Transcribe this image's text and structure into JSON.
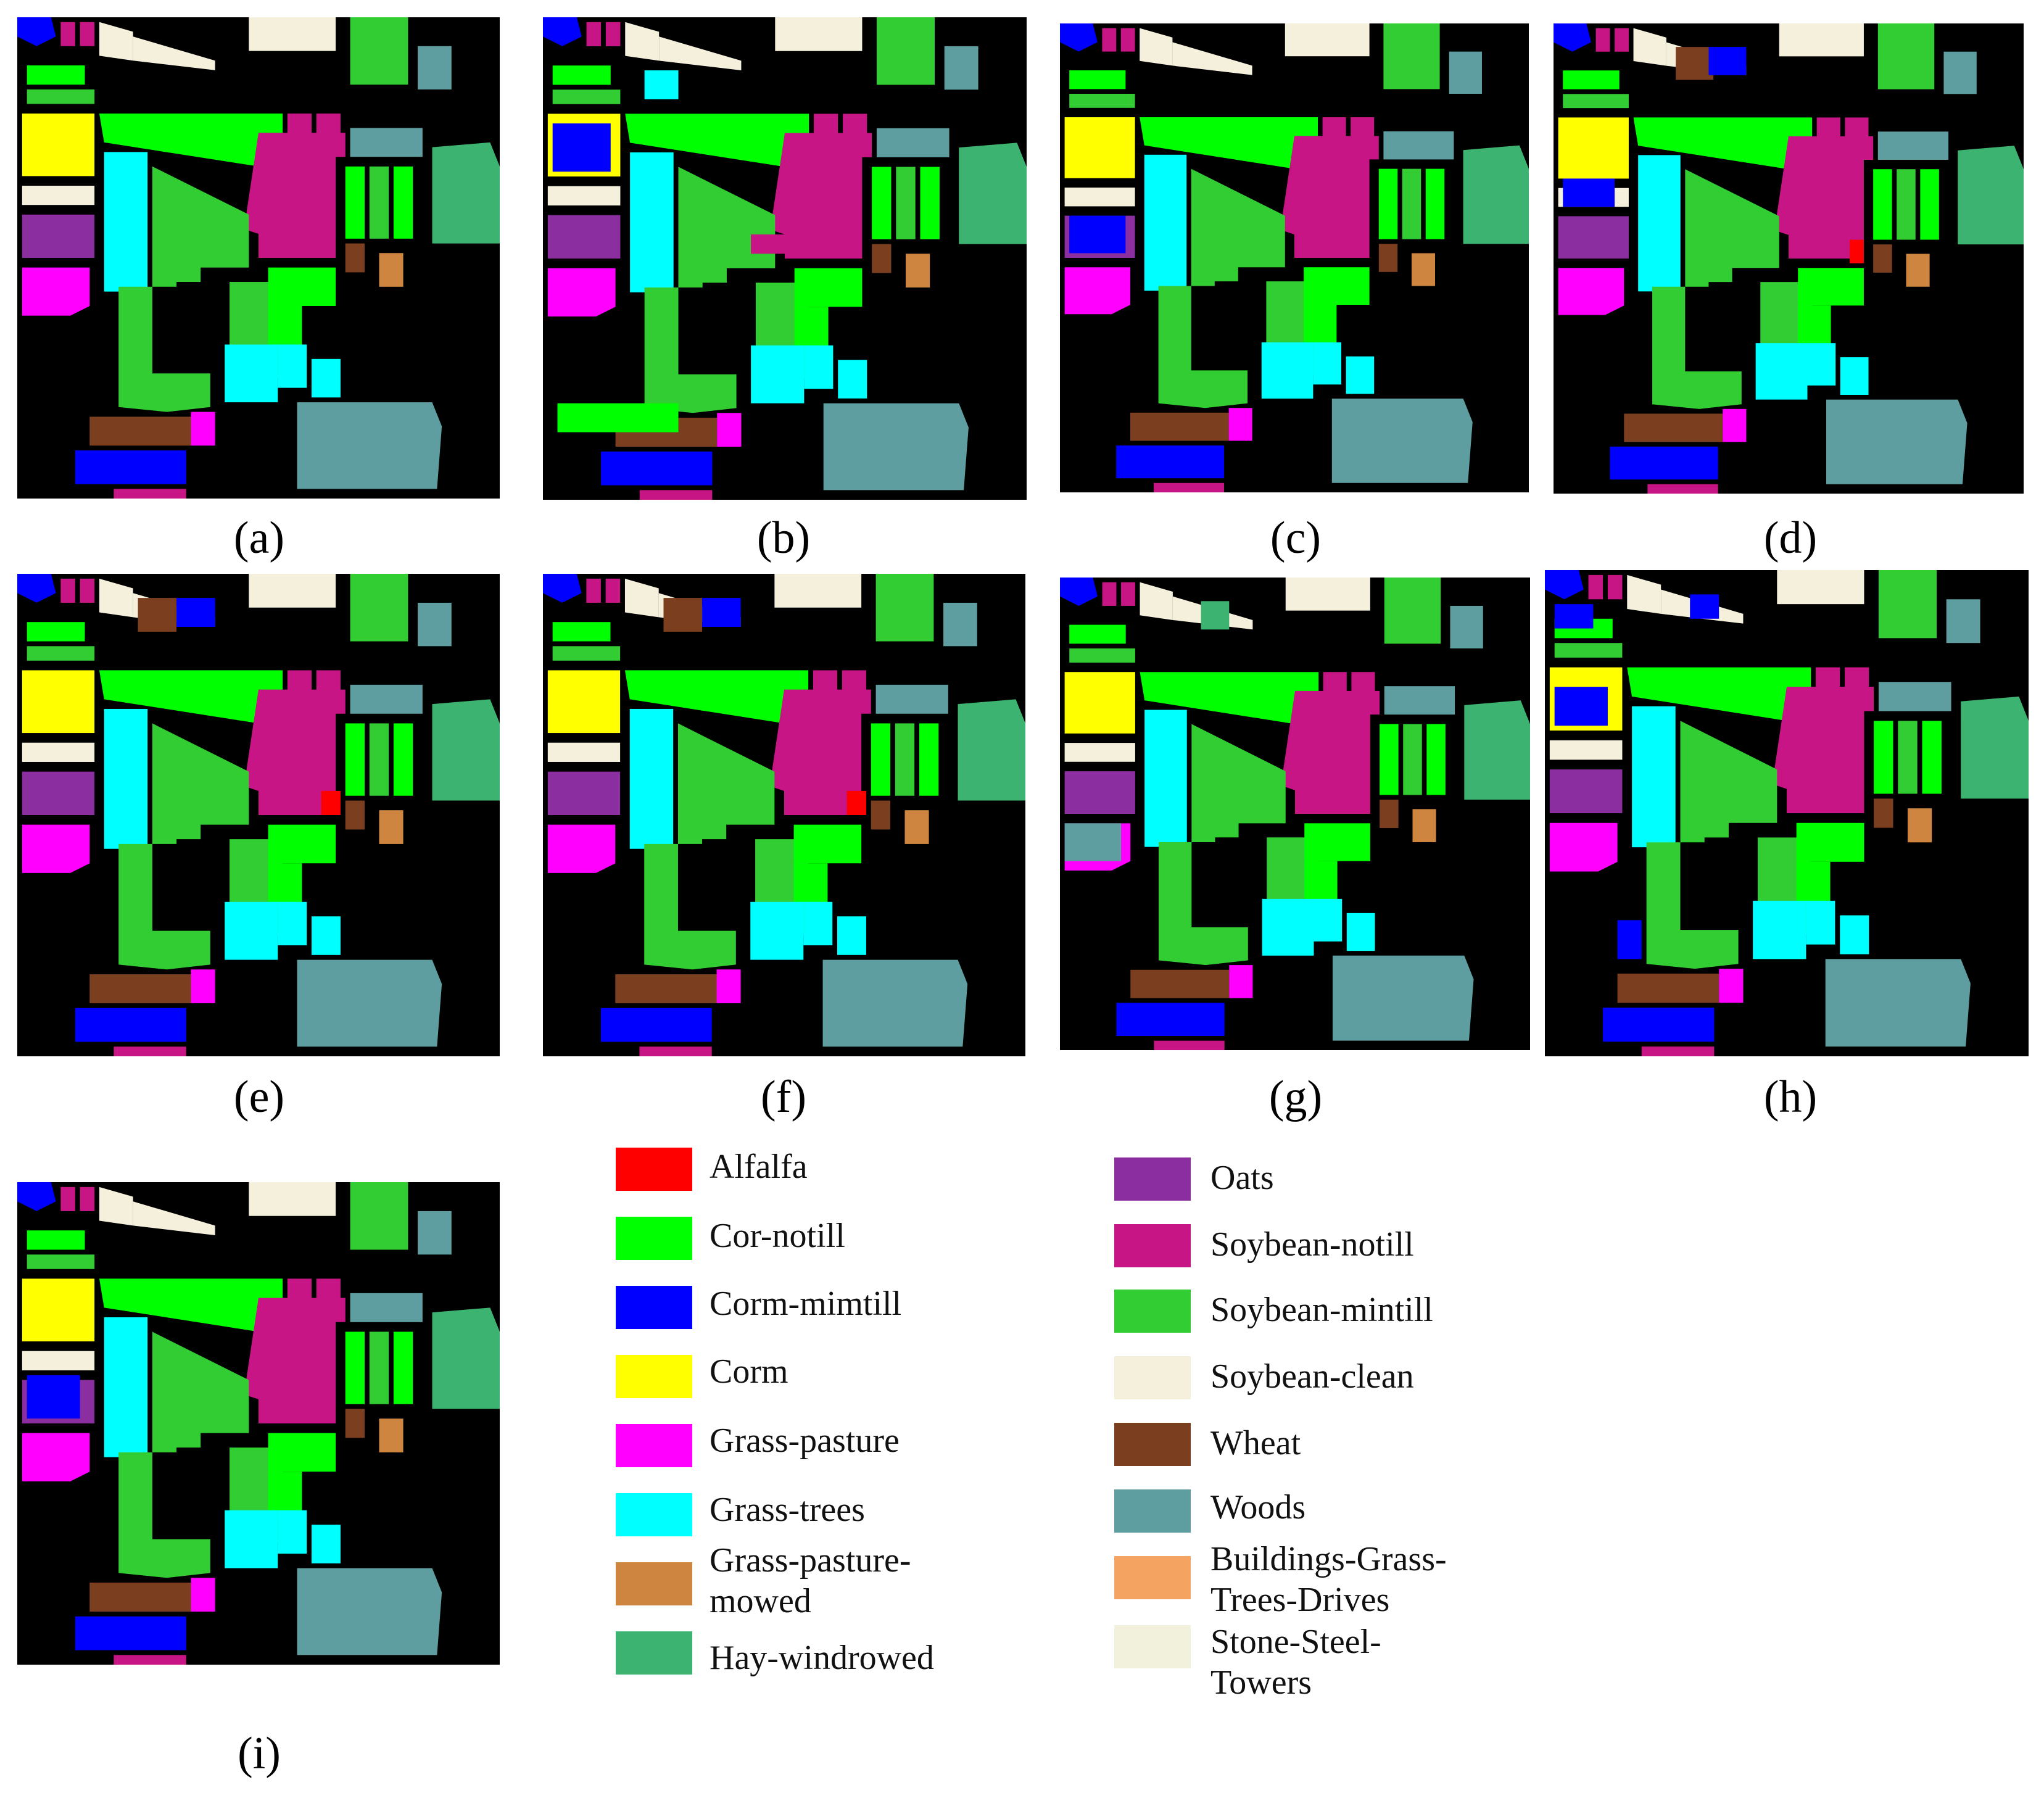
{
  "panels": [
    {
      "id": "a",
      "caption": "(a)"
    },
    {
      "id": "b",
      "caption": "(b)"
    },
    {
      "id": "c",
      "caption": "(c)"
    },
    {
      "id": "d",
      "caption": "(d)"
    },
    {
      "id": "e",
      "caption": "(e)"
    },
    {
      "id": "f",
      "caption": "(f)"
    },
    {
      "id": "g",
      "caption": "(g)"
    },
    {
      "id": "h",
      "caption": "(h)"
    },
    {
      "id": "i",
      "caption": "(i)"
    }
  ],
  "legend": [
    {
      "label": "Alfalfa",
      "color": "#ff0000"
    },
    {
      "label": "Cor-notill",
      "color": "#00ff00"
    },
    {
      "label": "Corm-mimtill",
      "color": "#0000ff"
    },
    {
      "label": "Corm",
      "color": "#ffff00"
    },
    {
      "label": "Grass-pasture",
      "color": "#ff00ff"
    },
    {
      "label": "Grass-trees",
      "color": "#00ffff"
    },
    {
      "label": "Grass-pasture-\nmowed",
      "color": "#cd853f"
    },
    {
      "label": "Hay-windrowed",
      "color": "#3cb371"
    },
    {
      "label": "Oats",
      "color": "#8b2fa0"
    },
    {
      "label": "Soybean-notill",
      "color": "#c71585"
    },
    {
      "label": "Soybean-mintill",
      "color": "#32cd32"
    },
    {
      "label": "Soybean-clean",
      "color": "#f5f0dc"
    },
    {
      "label": "Wheat",
      "color": "#7b3f20"
    },
    {
      "label": "Woods",
      "color": "#5f9ea0"
    },
    {
      "label": "Buildings-Grass-\nTrees-Drives",
      "color": "#f4a460"
    },
    {
      "label": "Stone-Steel-\nTowers",
      "color": "#f2f2dc"
    }
  ]
}
